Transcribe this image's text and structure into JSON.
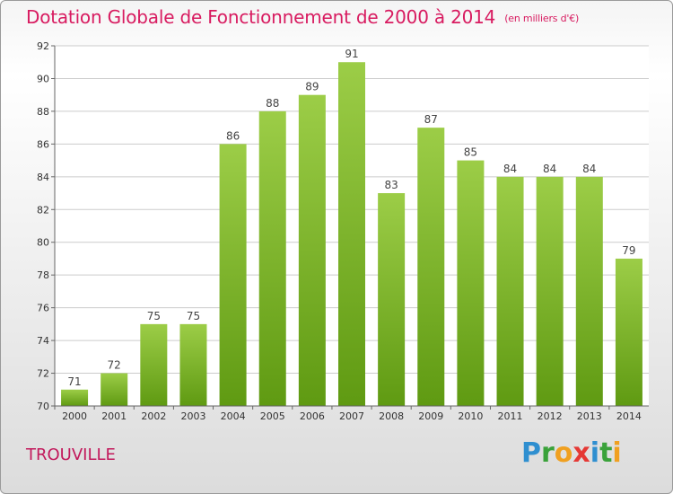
{
  "header": {
    "title": "Dotation Globale de Fonctionnement de 2000 à 2014",
    "subtitle": "(en milliers d'€)"
  },
  "footer": {
    "commune": "TROUVILLE",
    "logo": "Proxiti"
  },
  "colors": {
    "bar_top": "#9ccd47",
    "bar_bottom": "#5f9a12",
    "title": "#d81b60",
    "grid": "#cccccc"
  },
  "chart_data": {
    "type": "bar",
    "title": "Dotation Globale de Fonctionnement de 2000 à 2014",
    "subtitle": "(en milliers d'€)",
    "categories": [
      "2000",
      "2001",
      "2002",
      "2003",
      "2004",
      "2005",
      "2006",
      "2007",
      "2008",
      "2009",
      "2010",
      "2011",
      "2012",
      "2013",
      "2014"
    ],
    "values": [
      71,
      72,
      75,
      75,
      86,
      88,
      89,
      91,
      83,
      87,
      85,
      84,
      84,
      84,
      79
    ],
    "ylim": [
      70,
      92
    ],
    "yticks": [
      70,
      72,
      74,
      76,
      78,
      80,
      82,
      84,
      86,
      88,
      90,
      92
    ],
    "grid": true,
    "legend": "none"
  }
}
